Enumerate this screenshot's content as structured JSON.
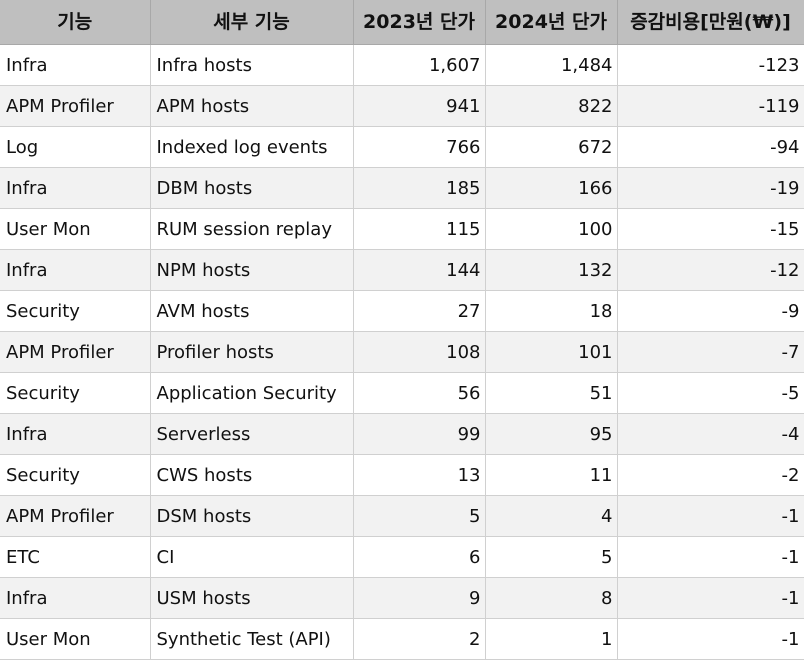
{
  "headers": [
    "기능",
    "세부 기능",
    "2023년 단가",
    "2024년 단가",
    "증감비용[만원(₩)]"
  ],
  "rows": [
    {
      "category": "Infra",
      "detail": "Infra hosts",
      "y2023": "1,607",
      "y2024": "1,484",
      "change": "-123"
    },
    {
      "category": "APM Profiler",
      "detail": "APM hosts",
      "y2023": "941",
      "y2024": "822",
      "change": "-119"
    },
    {
      "category": "Log",
      "detail": "Indexed log events",
      "y2023": "766",
      "y2024": "672",
      "change": "-94"
    },
    {
      "category": "Infra",
      "detail": "DBM hosts",
      "y2023": "185",
      "y2024": "166",
      "change": "-19"
    },
    {
      "category": "User Mon",
      "detail": "RUM session replay",
      "y2023": "115",
      "y2024": "100",
      "change": "-15"
    },
    {
      "category": "Infra",
      "detail": "NPM hosts",
      "y2023": "144",
      "y2024": "132",
      "change": "-12"
    },
    {
      "category": "Security",
      "detail": "AVM hosts",
      "y2023": "27",
      "y2024": "18",
      "change": "-9"
    },
    {
      "category": "APM Profiler",
      "detail": "Profiler hosts",
      "y2023": "108",
      "y2024": "101",
      "change": "-7"
    },
    {
      "category": "Security",
      "detail": "Application Security",
      "y2023": "56",
      "y2024": "51",
      "change": "-5"
    },
    {
      "category": "Infra",
      "detail": "Serverless",
      "y2023": "99",
      "y2024": "95",
      "change": "-4"
    },
    {
      "category": "Security",
      "detail": "CWS hosts",
      "y2023": "13",
      "y2024": "11",
      "change": "-2"
    },
    {
      "category": "APM Profiler",
      "detail": "DSM hosts",
      "y2023": "5",
      "y2024": "4",
      "change": "-1"
    },
    {
      "category": "ETC",
      "detail": "CI",
      "y2023": "6",
      "y2024": "5",
      "change": "-1"
    },
    {
      "category": "Infra",
      "detail": "USM hosts",
      "y2023": "9",
      "y2024": "8",
      "change": "-1"
    },
    {
      "category": "User Mon",
      "detail": "Synthetic Test (API)",
      "y2023": "2",
      "y2024": "1",
      "change": "-1"
    }
  ]
}
